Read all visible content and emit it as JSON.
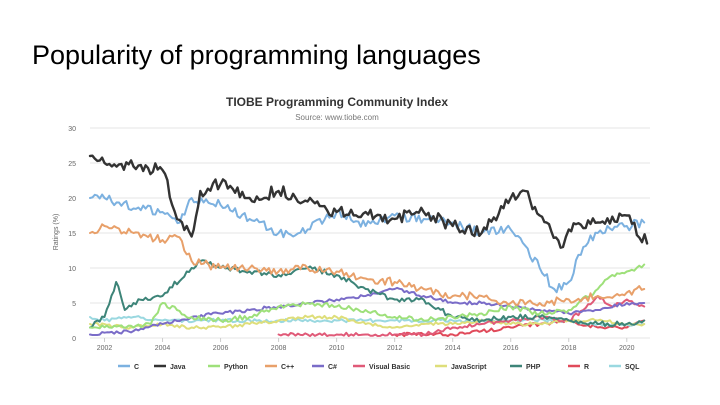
{
  "slide": {
    "title": "Popularity of programming languages"
  },
  "chart_data": {
    "type": "line",
    "title": "TIOBE Programming Community Index",
    "subtitle": "Source: www.tiobe.com",
    "xlabel": "",
    "ylabel": "Ratings (%)",
    "xlim": [
      2001.5,
      2020.8
    ],
    "ylim": [
      0,
      30
    ],
    "yticks": [
      0,
      5,
      10,
      15,
      20,
      25,
      30
    ],
    "xticks": [
      2002,
      2004,
      2006,
      2008,
      2010,
      2012,
      2014,
      2016,
      2018,
      2020
    ],
    "grid": true,
    "legend_position": "bottom",
    "series": [
      {
        "name": "C",
        "color": "#7cb1e0",
        "x": [
          2001.5,
          2002,
          2003,
          2004,
          2004.6,
          2005,
          2006,
          2007,
          2008,
          2008.5,
          2009,
          2010,
          2011,
          2012,
          2013,
          2014,
          2015,
          2016,
          2017,
          2017.5,
          2018,
          2018.5,
          2019,
          2020,
          2020.6
        ],
        "y": [
          20,
          20,
          18.5,
          18,
          16.5,
          20,
          19,
          17,
          15,
          14.5,
          15.5,
          18,
          16,
          17.5,
          17,
          16.5,
          15,
          15.5,
          10,
          7,
          8,
          13,
          15,
          16,
          16.5
        ]
      },
      {
        "name": "Java",
        "color": "#333333",
        "x": [
          2001.5,
          2002,
          2003,
          2004,
          2004.5,
          2005,
          2005.3,
          2006,
          2007,
          2008,
          2009,
          2010,
          2011,
          2012,
          2013,
          2014,
          2015,
          2016,
          2016.5,
          2017,
          2017.8,
          2018,
          2019,
          2020,
          2020.7
        ],
        "y": [
          26,
          25,
          24.5,
          24,
          17,
          14.5,
          21,
          22,
          20,
          21,
          19.5,
          18,
          18,
          17,
          18,
          16,
          15,
          20,
          21,
          17.5,
          13,
          15.5,
          16.5,
          17.5,
          13.5
        ]
      },
      {
        "name": "Python",
        "color": "#9ee07a",
        "x": [
          2001.5,
          2003,
          2003.6,
          2004,
          2004.5,
          2005,
          2006,
          2007,
          2008,
          2009,
          2010,
          2011,
          2012,
          2013,
          2014,
          2015,
          2016,
          2017,
          2018,
          2019,
          2019.5,
          2020,
          2020.6
        ],
        "y": [
          1.5,
          1.5,
          2,
          5,
          4,
          3,
          2.5,
          3,
          4.5,
          5,
          4.5,
          4,
          3,
          2.5,
          3,
          3.5,
          4.5,
          3.5,
          4,
          7,
          9,
          9.5,
          10.5
        ]
      },
      {
        "name": "C++",
        "color": "#e8a06a",
        "x": [
          2001.5,
          2002,
          2003,
          2004,
          2004.5,
          2005,
          2006,
          2007,
          2008,
          2009,
          2010,
          2011,
          2012,
          2013,
          2014,
          2015,
          2016,
          2017,
          2018,
          2019,
          2020,
          2020.6
        ],
        "y": [
          15,
          16,
          15,
          14,
          14.5,
          11,
          10,
          10,
          9.5,
          10,
          9.5,
          8.5,
          8,
          7,
          6,
          6,
          5,
          5,
          5.5,
          6,
          6.5,
          7
        ]
      },
      {
        "name": "C#",
        "color": "#7a6cc8",
        "x": [
          2001.5,
          2003,
          2004,
          2005,
          2006,
          2007,
          2008,
          2009,
          2010,
          2011,
          2012,
          2013,
          2014,
          2015,
          2016,
          2017,
          2018,
          2019,
          2020,
          2020.6
        ],
        "y": [
          0.5,
          1,
          2,
          3,
          3.5,
          4,
          4.5,
          5,
          5.5,
          6,
          7,
          6,
          5,
          5,
          4.5,
          4,
          3.5,
          4,
          5,
          5
        ]
      },
      {
        "name": "Visual Basic",
        "color": "#e05a78",
        "x": [
          2008,
          2009,
          2010,
          2011,
          2012,
          2013,
          2014,
          2015,
          2016,
          2017,
          2018,
          2018.5,
          2019,
          2019.5,
          2020,
          2020.6
        ],
        "y": [
          0.5,
          0.5,
          0.5,
          0.5,
          0.5,
          0.5,
          1.5,
          2,
          2.5,
          3,
          2.5,
          4,
          6,
          4.5,
          5.5,
          4.5
        ]
      },
      {
        "name": "JavaScript",
        "color": "#dede7a",
        "x": [
          2001.5,
          2003,
          2004,
          2005,
          2006,
          2007,
          2008,
          2009,
          2010,
          2011,
          2012,
          2013,
          2014,
          2015,
          2016,
          2017,
          2018,
          2019,
          2020,
          2020.6
        ],
        "y": [
          2,
          1.5,
          2,
          1.5,
          1.5,
          2,
          2.5,
          3,
          3,
          2,
          1.5,
          2,
          2,
          2.5,
          2,
          2,
          2.5,
          2.5,
          2,
          2
        ]
      },
      {
        "name": "PHP",
        "color": "#3d8478",
        "x": [
          2001.5,
          2002,
          2002.4,
          2002.7,
          2003,
          2004,
          2005,
          2005.3,
          2006,
          2007,
          2008,
          2009,
          2010,
          2011,
          2012,
          2013,
          2014,
          2015,
          2016,
          2017,
          2018,
          2019,
          2020,
          2020.6
        ],
        "y": [
          1.5,
          3,
          8,
          4,
          5,
          6,
          10,
          11,
          10,
          9.5,
          9,
          10,
          9,
          7,
          5.5,
          5.5,
          3,
          2.5,
          3,
          3,
          2.5,
          2,
          2,
          2.5
        ]
      },
      {
        "name": "R",
        "color": "#e04a5a",
        "x": [
          2012,
          2013,
          2014,
          2015,
          2016,
          2017,
          2018,
          2019,
          2020,
          2020.6
        ],
        "y": [
          0.5,
          0.5,
          0.5,
          1,
          1.5,
          2,
          2.5,
          1.5,
          1.5,
          2.5
        ]
      },
      {
        "name": "SQL",
        "color": "#9ad8e0",
        "x": [
          2001.5,
          2002,
          2003,
          2004,
          2006,
          2008,
          2010,
          2012,
          2014,
          2016,
          2018,
          2019,
          2020,
          2020.6
        ],
        "y": [
          3,
          2.5,
          3,
          2.5,
          2.5,
          2.5,
          2.5,
          2.5,
          2.5,
          2.5,
          2.5,
          2,
          2,
          2
        ]
      }
    ]
  }
}
